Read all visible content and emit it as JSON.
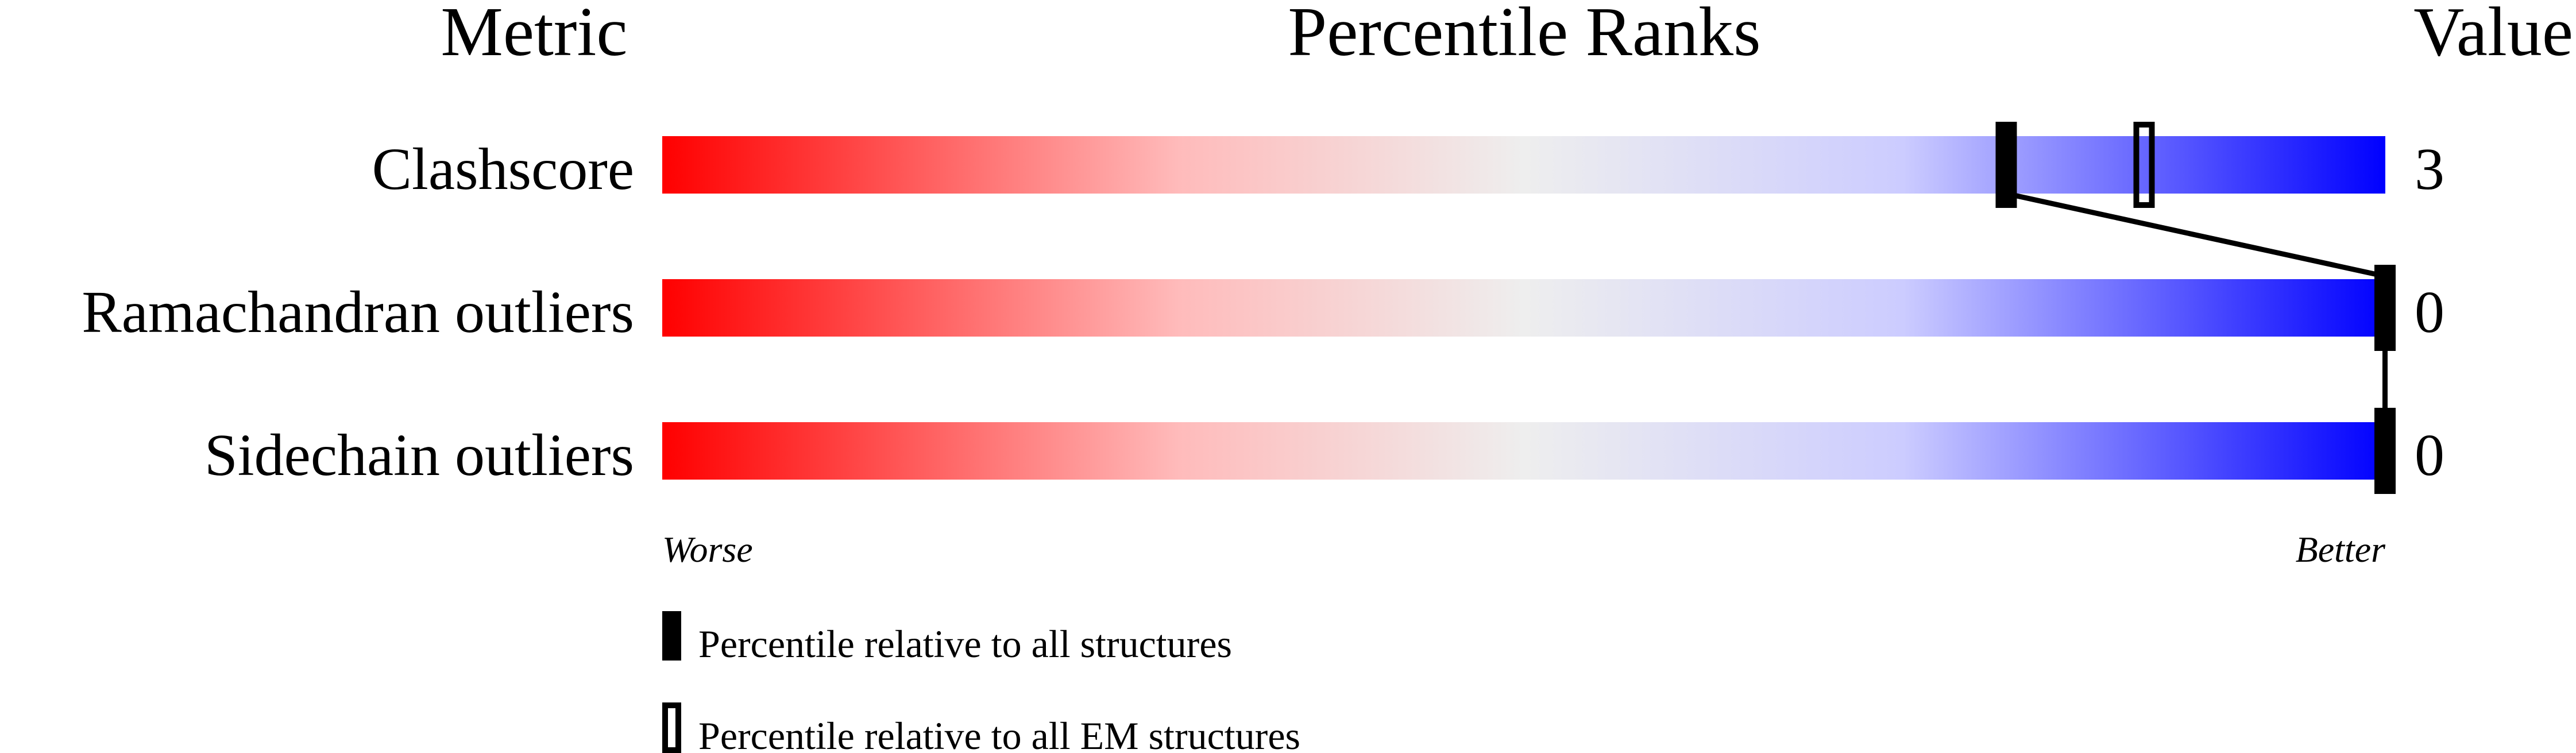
{
  "chart_data": {
    "type": "percentile-slider",
    "headers": {
      "metric": "Metric",
      "ranks": "Percentile Ranks",
      "value": "Value"
    },
    "axis": {
      "left_label": "Worse",
      "right_label": "Better",
      "range": [
        0,
        100
      ]
    },
    "gradient_colors": [
      "#ff0000",
      "#ffbbbb",
      "#eeeeee",
      "#ccccff",
      "#0000ff"
    ],
    "metrics": [
      {
        "name": "Clashscore",
        "value": "3",
        "percentile_all": 78,
        "percentile_em": 86
      },
      {
        "name": "Ramachandran outliers",
        "value": "0",
        "percentile_all": 100,
        "percentile_em": null
      },
      {
        "name": "Sidechain outliers",
        "value": "0",
        "percentile_all": 100,
        "percentile_em": null
      }
    ],
    "legend": {
      "all": "Percentile relative to all structures",
      "em": "Percentile relative to all EM structures"
    }
  }
}
